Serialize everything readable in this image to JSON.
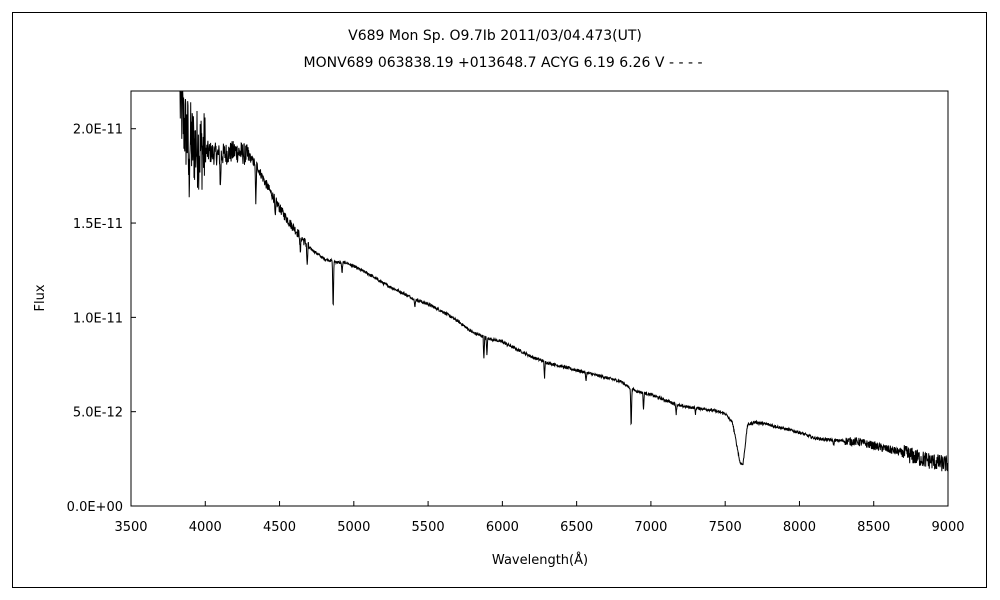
{
  "chart_data": {
    "type": "line",
    "title": "V689 Mon    Sp. O9.7Ib    2011/03/04.473(UT)",
    "subtitle": "MONV689 063838.19 +013648.7 ACYG 6.19 6.26  V - - - -",
    "xlabel": "Wavelength(Å)",
    "ylabel": "Flux",
    "xlim": [
      3500,
      9000
    ],
    "ylim": [
      0,
      2.2e-11
    ],
    "x_ticks": [
      3500,
      4000,
      4500,
      5000,
      5500,
      6000,
      6500,
      7000,
      7500,
      8000,
      8500,
      9000
    ],
    "x_tick_labels": [
      "3500",
      "4000",
      "4500",
      "5000",
      "5500",
      "6000",
      "6500",
      "7000",
      "7500",
      "8000",
      "8500",
      "9000"
    ],
    "y_ticks": [
      0,
      5e-12,
      1e-11,
      1.5e-11,
      2e-11
    ],
    "y_tick_labels": [
      "0.0E+00",
      "5.0E-12",
      "1.0E-11",
      "1.5E-11",
      "2.0E-11"
    ],
    "grid": false,
    "legend": "none",
    "line_color": "#000000",
    "series": [
      {
        "x": [
          3830,
          3850,
          3870,
          3890,
          3910,
          3940,
          3970,
          4000,
          4050,
          4100,
          4150,
          4200,
          4250,
          4300,
          4350,
          4400,
          4450,
          4500,
          4550,
          4600,
          4650,
          4700,
          4750,
          4800,
          4850,
          4900,
          4950,
          5000,
          5100,
          5200,
          5300,
          5400,
          5500,
          5600,
          5700,
          5800,
          5900,
          6000,
          6100,
          6200,
          6300,
          6400,
          6500,
          6600,
          6700,
          6800,
          6850,
          6900,
          6950,
          7000,
          7100,
          7200,
          7300,
          7400,
          7500,
          7550,
          7600,
          7620,
          7650,
          7700,
          7800,
          7900,
          8000,
          8100,
          8200,
          8300,
          8400,
          8500,
          8600,
          8700,
          8800,
          8900,
          9000
        ],
        "y": [
          2.15e-11,
          2.05e-11,
          1.98e-11,
          1.95e-11,
          1.92e-11,
          1.9e-11,
          1.89e-11,
          1.88e-11,
          1.87e-11,
          1.86e-11,
          1.87e-11,
          1.88e-11,
          1.87e-11,
          1.85e-11,
          1.8e-11,
          1.72e-11,
          1.65e-11,
          1.58e-11,
          1.52e-11,
          1.47e-11,
          1.42e-11,
          1.37e-11,
          1.34e-11,
          1.31e-11,
          1.3e-11,
          1.29e-11,
          1.29e-11,
          1.27e-11,
          1.23e-11,
          1.18e-11,
          1.14e-11,
          1.1e-11,
          1.07e-11,
          1.03e-11,
          9.8e-12,
          9.2e-12,
          8.9e-12,
          8.7e-12,
          8.3e-12,
          7.9e-12,
          7.6e-12,
          7.4e-12,
          7.2e-12,
          7e-12,
          6.8e-12,
          6.6e-12,
          6.3e-12,
          6.1e-12,
          6e-12,
          5.9e-12,
          5.6e-12,
          5.3e-12,
          5.2e-12,
          5.1e-12,
          4.9e-12,
          4.4e-12,
          2.3e-12,
          2.2e-12,
          4.3e-12,
          4.45e-12,
          4.3e-12,
          4.1e-12,
          3.9e-12,
          3.6e-12,
          3.5e-12,
          3.45e-12,
          3.4e-12,
          3.2e-12,
          3e-12,
          2.8e-12,
          2.55e-12,
          2.35e-12,
          2.2e-12
        ]
      }
    ],
    "absorption_features": [
      {
        "x": 3890,
        "depth": 2.5e-12
      },
      {
        "x": 4102,
        "depth": 1.8e-12
      },
      {
        "x": 4340,
        "depth": 2.2e-12
      },
      {
        "x": 4471,
        "depth": 1.1e-12
      },
      {
        "x": 4640,
        "depth": 1e-12
      },
      {
        "x": 4686,
        "depth": 1.2e-12
      },
      {
        "x": 4861,
        "depth": 2.7e-12
      },
      {
        "x": 4921,
        "depth": 6e-13
      },
      {
        "x": 5411,
        "depth": 5e-13
      },
      {
        "x": 5876,
        "depth": 1.2e-12
      },
      {
        "x": 5896,
        "depth": 9e-13
      },
      {
        "x": 6284,
        "depth": 9e-13
      },
      {
        "x": 6563,
        "depth": 5e-13
      },
      {
        "x": 6867,
        "depth": 2.2e-12
      },
      {
        "x": 6950,
        "depth": 9e-13
      },
      {
        "x": 7170,
        "depth": 5e-13
      },
      {
        "x": 7300,
        "depth": 3e-13
      },
      {
        "x": 8230,
        "depth": 3e-13
      }
    ]
  }
}
